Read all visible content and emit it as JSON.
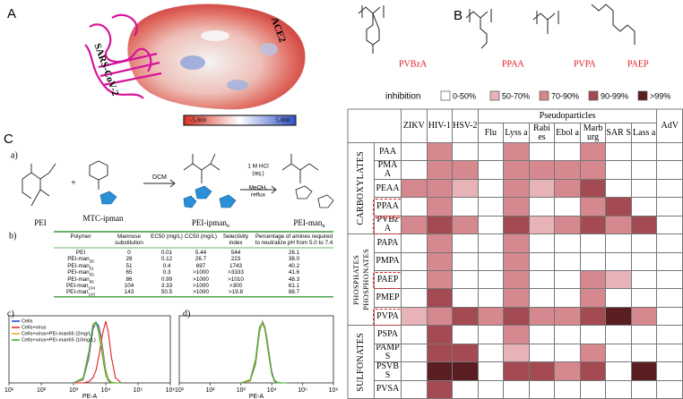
{
  "panel_a": {
    "label": "A",
    "protein_labels": [
      "ACE2",
      "SARS-CoV-2"
    ],
    "colorbar": {
      "min_label": "-5.000",
      "max_label": "5.000",
      "colors": [
        "#d7301f",
        "#ffffff",
        "#2b50c8"
      ]
    }
  },
  "panel_b": {
    "label": "B",
    "polymers": [
      "PVBzA",
      "PPAA",
      "PVPA",
      "PAEP"
    ],
    "polymer_color": "#e41a1c",
    "legend_title": "inhibition",
    "levels": [
      {
        "label": "0-50%",
        "color": "#ffffff"
      },
      {
        "label": "50-70%",
        "color": "#e7b3b7"
      },
      {
        "label": "70-90%",
        "color": "#d5888e"
      },
      {
        "label": "90-99%",
        "color": "#a44a52"
      },
      {
        "label": ">99%",
        "color": "#5a1d22"
      }
    ],
    "table": {
      "group_header": "Pseudoparticles",
      "columns": [
        {
          "name": "ZIKV"
        },
        {
          "name": "HIV-1"
        },
        {
          "name": "HSV-2"
        },
        {
          "name": "Flu",
          "pseudo": true
        },
        {
          "name": "Lyss a",
          "pseudo": true
        },
        {
          "name": "Rabi es",
          "pseudo": true
        },
        {
          "name": "Ebol a",
          "pseudo": true
        },
        {
          "name": "Marb urg",
          "pseudo": true
        },
        {
          "name": "SAR S",
          "pseudo": true
        },
        {
          "name": "Lass a",
          "pseudo": true
        },
        {
          "name": "AdV"
        }
      ],
      "row_groups": [
        {
          "names": [
            "CARBOXYLATES"
          ],
          "rows": [
            {
              "name": "PAA",
              "levels": [
                0,
                2,
                0,
                0,
                2,
                0,
                0,
                2,
                0,
                0,
                0
              ]
            },
            {
              "name": "PMA A",
              "levels": [
                0,
                2,
                2,
                0,
                2,
                2,
                2,
                2,
                0,
                0,
                0
              ]
            },
            {
              "name": "PEAA",
              "levels": [
                2,
                2,
                1,
                0,
                2,
                1,
                2,
                3,
                0,
                0,
                0
              ]
            },
            {
              "name": "PPAA",
              "levels": [
                0,
                2,
                0,
                0,
                2,
                0,
                0,
                2,
                3,
                0,
                0
              ],
              "highlight": true
            },
            {
              "name": "PVBz A",
              "levels": [
                2,
                3,
                2,
                0,
                3,
                1,
                2,
                3,
                2,
                3,
                0
              ],
              "highlight": true
            }
          ]
        },
        {
          "names": [
            "PHOSPHATES",
            "PHOSPHONATES"
          ],
          "rows": [
            {
              "name": "PAPA",
              "levels": [
                0,
                2,
                0,
                0,
                2,
                0,
                0,
                0,
                0,
                0,
                0
              ]
            },
            {
              "name": "PMPA",
              "levels": [
                0,
                2,
                0,
                0,
                2,
                0,
                0,
                0,
                0,
                0,
                0
              ]
            },
            {
              "name": "PAEP",
              "levels": [
                0,
                2,
                0,
                0,
                2,
                0,
                0,
                2,
                1,
                0,
                0
              ],
              "highlight": true
            },
            {
              "name": "PMEP",
              "levels": [
                0,
                3,
                0,
                0,
                2,
                0,
                0,
                2,
                0,
                0,
                0
              ]
            },
            {
              "name": "PVPA",
              "levels": [
                1,
                2,
                3,
                2,
                3,
                2,
                2,
                3,
                4,
                2,
                0
              ],
              "highlight": true
            }
          ]
        },
        {
          "names": [
            "SULFONATES"
          ],
          "rows": [
            {
              "name": "PSPA",
              "levels": [
                0,
                3,
                0,
                0,
                2,
                0,
                0,
                0,
                0,
                0,
                0
              ]
            },
            {
              "name": "PAMP S",
              "levels": [
                0,
                3,
                3,
                0,
                1,
                0,
                0,
                2,
                0,
                0,
                0
              ]
            },
            {
              "name": "PSVB S",
              "levels": [
                0,
                4,
                4,
                0,
                3,
                3,
                2,
                3,
                0,
                4,
                0
              ]
            },
            {
              "name": "PVSA",
              "levels": [
                0,
                3,
                0,
                0,
                0,
                0,
                0,
                0,
                0,
                0,
                0
              ]
            }
          ]
        }
      ]
    }
  },
  "panel_c": {
    "label": "C",
    "scheme": {
      "label": "a)",
      "reactant": "PEI",
      "monomer": "MTC-ipman",
      "step1": "DCM",
      "step2": [
        "1 M HCl",
        "(aq.)",
        "MeOH,",
        "reflux"
      ],
      "intermediate": {
        "base": "PEI-ipman",
        "sub": "n"
      },
      "product": {
        "base": "PEI-man",
        "sub": "n"
      },
      "plus": "+"
    },
    "table": {
      "label": "b)",
      "line_color": "#3a9a3a",
      "header": [
        "Polymer",
        "Mannose substitution",
        "EC50 (mg/L)",
        "CC50 (mg/L)",
        "Selectivity index",
        "Percentage of amines required to neutralize pH from 5.0 to 7.4"
      ],
      "rows": [
        [
          {
            "base": "PEI"
          },
          "0",
          "0.01",
          "5.44",
          "544",
          "26.1"
        ],
        [
          {
            "base": "PEI-man",
            "sub": "28"
          },
          "28",
          "0.12",
          "26.7",
          "223",
          "38.0"
        ],
        [
          {
            "base": "PEI-man",
            "sub": "51"
          },
          "51",
          "0.4",
          "697",
          "1743",
          "40.2"
        ],
        [
          {
            "base": "PEI-man",
            "sub": "65"
          },
          "65",
          "0.3",
          ">1000",
          ">3333",
          "41.6"
        ],
        [
          {
            "base": "PEI-man",
            "sub": "86"
          },
          "86",
          "0.99",
          ">1000",
          ">1010",
          "48.3"
        ],
        [
          {
            "base": "PEI-man",
            "sub": "104"
          },
          "104",
          "3.33",
          ">1000",
          ">300",
          "61.1"
        ],
        [
          {
            "base": "PEI-man",
            "sub": "143"
          },
          "143",
          "50.5",
          ">1000",
          ">19.8",
          "88.7"
        ]
      ]
    },
    "plots": [
      {
        "type": "line",
        "label": "c)",
        "xlabel": "PE-A",
        "log_x": true,
        "xlim": [
          10,
          1000000
        ],
        "ylim": [
          0,
          100
        ],
        "xticks": [
          {
            "value": 10,
            "label": "10¹"
          },
          {
            "value": 100,
            "label": "10²"
          },
          {
            "value": 1000,
            "label": "10³"
          },
          {
            "value": 10000,
            "label": "10⁴"
          },
          {
            "value": 100000,
            "label": "10⁵"
          },
          {
            "value": 1000000,
            "label": "10⁶"
          }
        ],
        "x": [
          1000,
          2000,
          3000,
          4000,
          5000,
          6000,
          7000,
          8000,
          10000,
          12000,
          15000,
          20000,
          30000
        ],
        "series": [
          {
            "name": "Cells",
            "color": "#1f3fd0",
            "values": [
              0,
              5,
              40,
              85,
              95,
              90,
              75,
              55,
              20,
              6,
              1,
              0,
              0
            ]
          },
          {
            "name": "Cells+virus",
            "color": "#e02020",
            "values": [
              0,
              0,
              2,
              8,
              20,
              40,
              60,
              78,
              97,
              80,
              40,
              8,
              0
            ]
          },
          {
            "name": "Cells+virus+PEI-man65 (2mg/L)",
            "color": "#f0a020",
            "values": [
              0,
              6,
              45,
              90,
              93,
              85,
              70,
              50,
              18,
              5,
              1,
              0,
              0
            ]
          },
          {
            "name": "Cells+virus+PEI-man65 (10mg/L)",
            "color": "#30b030",
            "values": [
              0,
              8,
              50,
              92,
              96,
              80,
              60,
              40,
              12,
              3,
              0,
              0,
              0
            ]
          }
        ]
      },
      {
        "type": "line",
        "label": "d)",
        "xlabel": "PE-A",
        "log_x": true,
        "xlim": [
          10,
          1000000
        ],
        "ylim": [
          0,
          100
        ],
        "xticks": [
          {
            "value": 10,
            "label": "10¹"
          },
          {
            "value": 100,
            "label": "10²"
          },
          {
            "value": 1000,
            "label": "10³"
          },
          {
            "value": 10000,
            "label": "10⁴"
          },
          {
            "value": 100000,
            "label": "10⁵"
          },
          {
            "value": 1000000,
            "label": "10⁶"
          }
        ],
        "x": [
          1000,
          2000,
          3000,
          4000,
          5000,
          6000,
          7000,
          8000,
          10000,
          12000,
          15000,
          20000,
          30000
        ],
        "series": [
          {
            "color": "#1f3fd0",
            "values": [
              0,
              3,
              30,
              80,
              97,
              88,
              70,
              50,
              18,
              5,
              1,
              0,
              0
            ]
          },
          {
            "color": "#e02020",
            "values": [
              0,
              4,
              35,
              85,
              95,
              85,
              65,
              45,
              15,
              4,
              1,
              0,
              0
            ]
          },
          {
            "color": "#f0a020",
            "values": [
              0,
              3,
              33,
              82,
              96,
              87,
              68,
              48,
              16,
              4,
              1,
              0,
              0
            ]
          },
          {
            "color": "#30b030",
            "values": [
              0,
              5,
              38,
              88,
              94,
              84,
              63,
              43,
              14,
              3,
              0,
              0,
              0
            ]
          }
        ]
      }
    ]
  }
}
